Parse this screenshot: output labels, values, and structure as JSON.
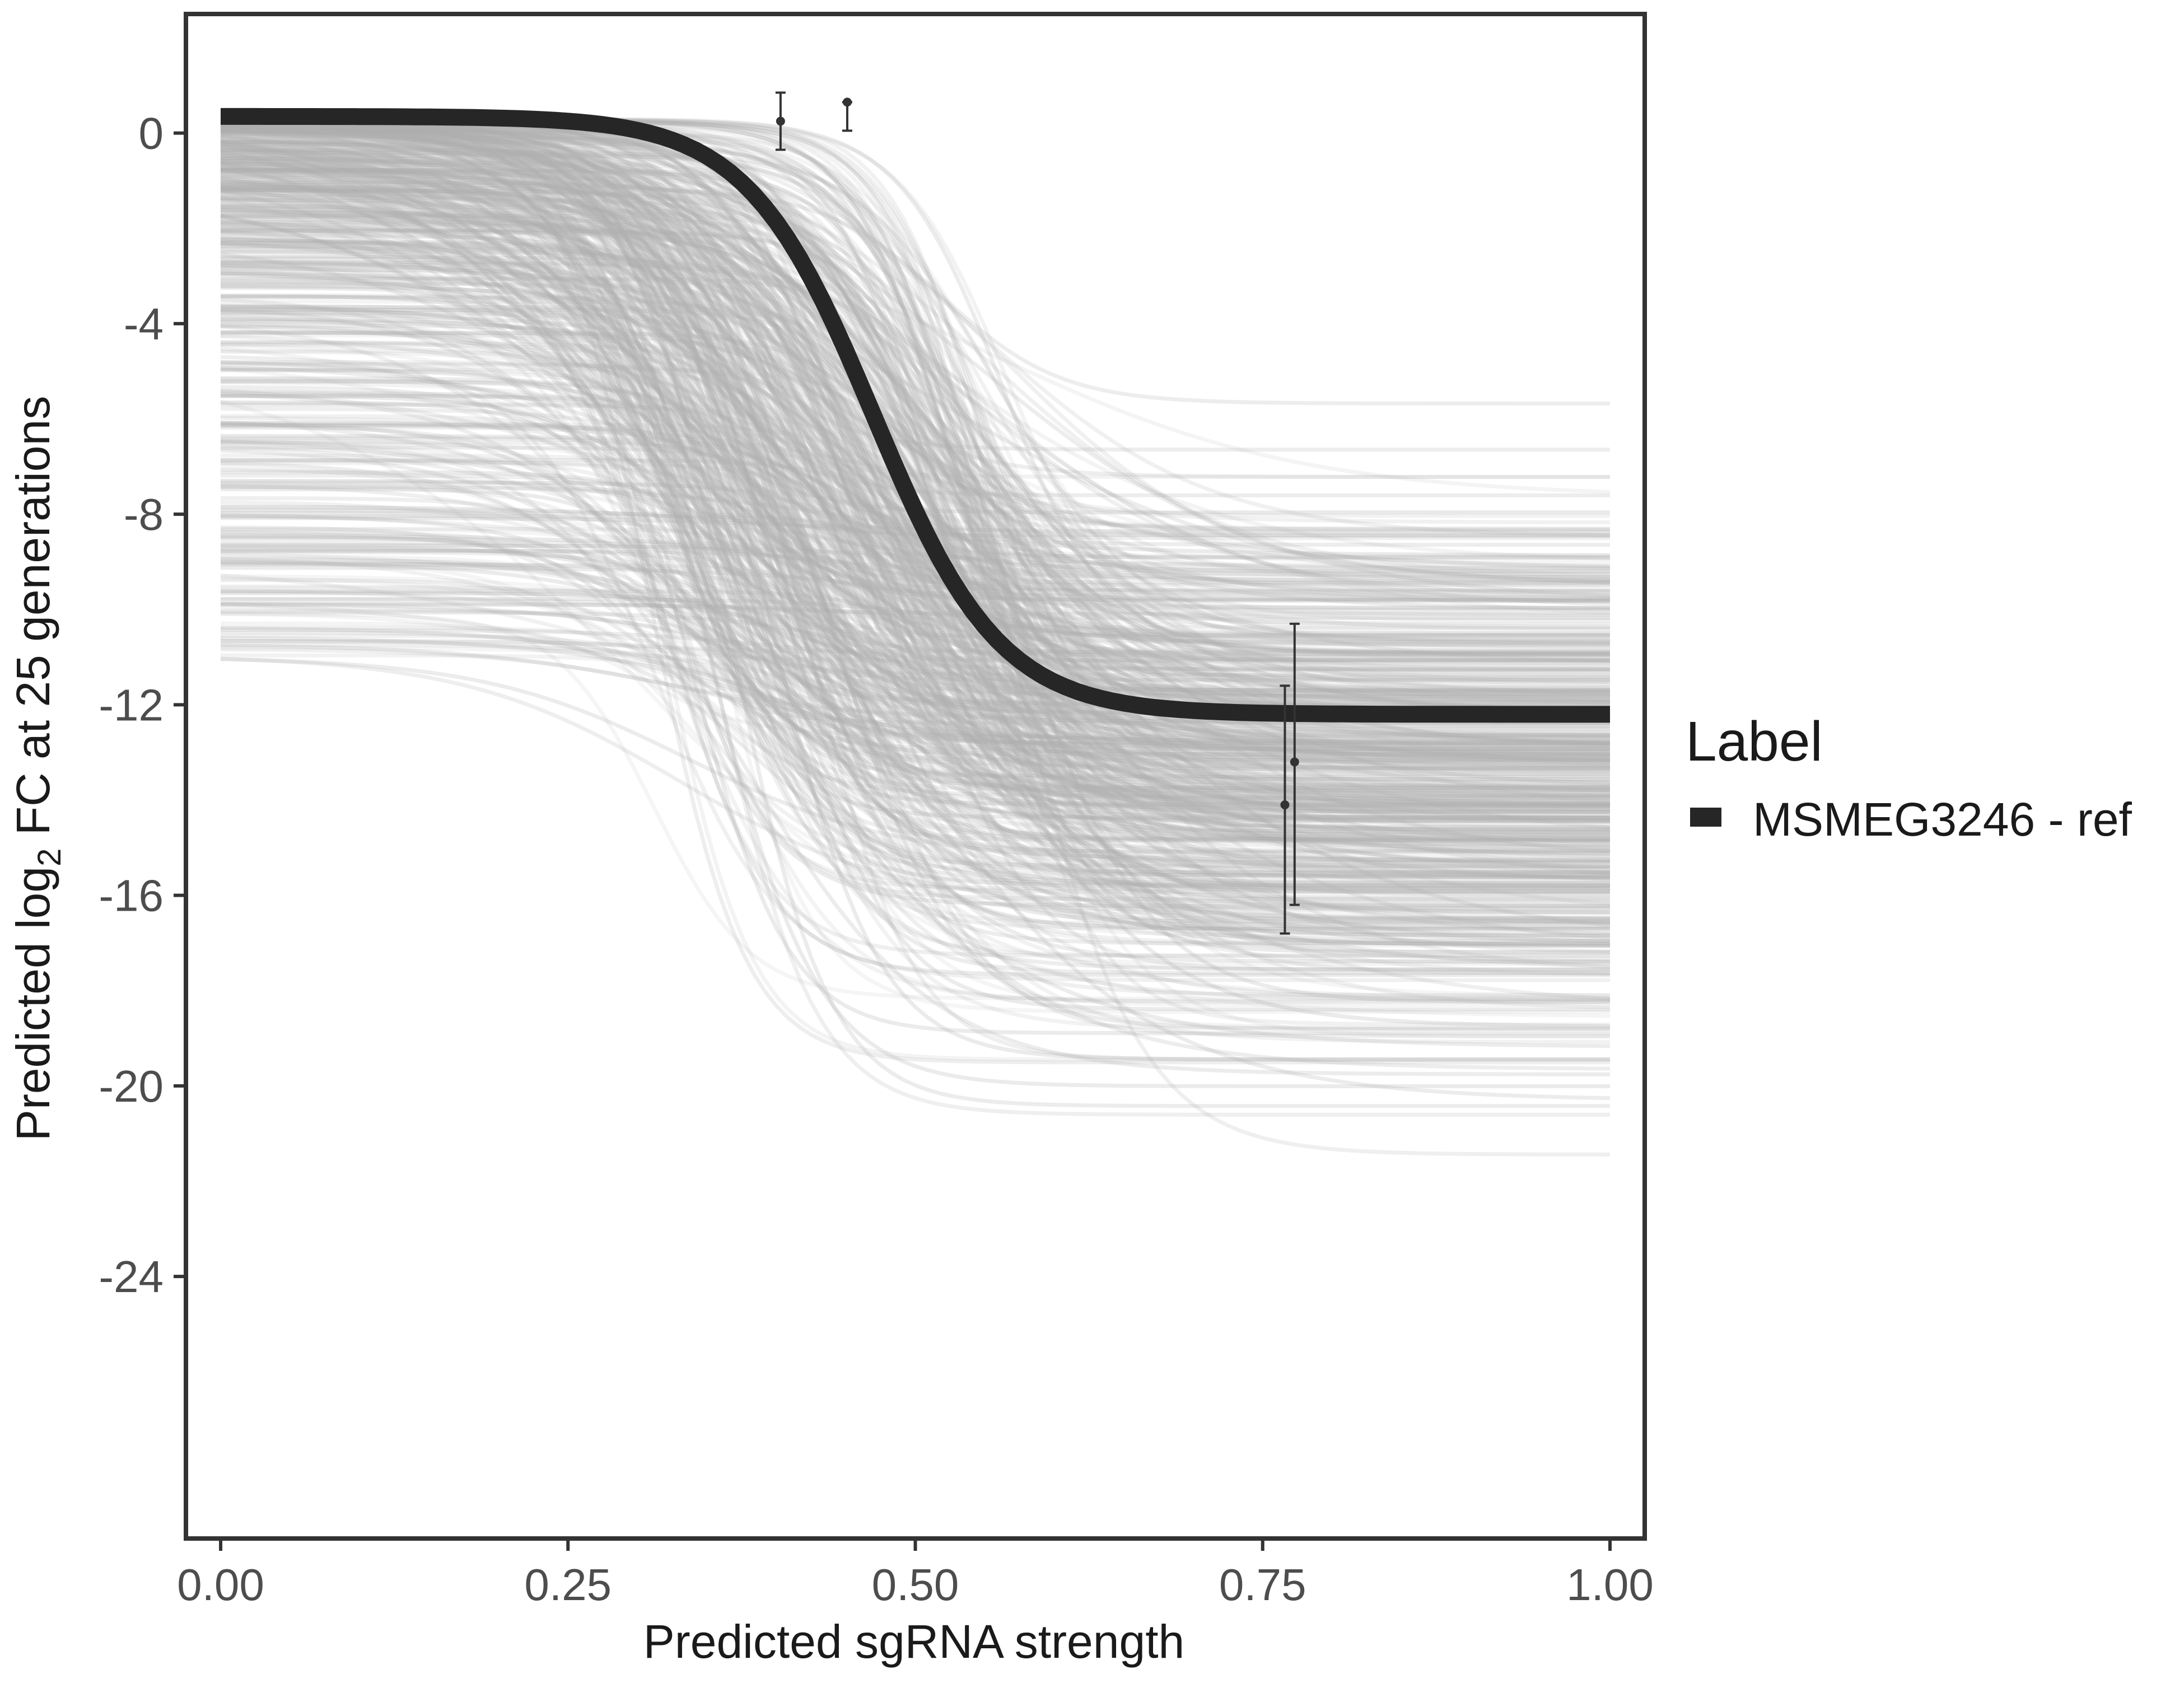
{
  "chart_data": {
    "type": "line",
    "title": "",
    "xlabel": "Predicted sgRNA strength",
    "ylabel_prefix": "Predicted  log",
    "ylabel_subscript": "2",
    "ylabel_suffix": " FC at 25 generations",
    "xlim": [
      -0.025,
      1.025
    ],
    "ylim": [
      -29.5,
      2.5
    ],
    "x_ticks": [
      0.0,
      0.25,
      0.5,
      0.75,
      1.0
    ],
    "x_tick_labels": [
      "0.00",
      "0.25",
      "0.50",
      "0.75",
      "1.00"
    ],
    "y_ticks": [
      0,
      -4,
      -8,
      -12,
      -16,
      -20,
      -24
    ],
    "y_tick_labels": [
      "0",
      "-4",
      "-8",
      "-12",
      "-16",
      "-20",
      "-24"
    ],
    "grid": false,
    "legend": {
      "title": "Label",
      "position": "right",
      "entries": [
        {
          "label": "MSMEG3246 - ref",
          "color": "#262626"
        }
      ]
    },
    "reference_curve": {
      "name": "MSMEG3246 - ref",
      "model": "logistic",
      "upper": 0.35,
      "lower": -12.2,
      "midpoint": 0.47,
      "slope": 22,
      "color": "#262626"
    },
    "posterior_draws": {
      "count": 600,
      "color": "#b0b0b0",
      "upper_range": [
        -11,
        0.3
      ],
      "lower_range": [
        -23.5,
        0.1
      ],
      "midpoint_range": [
        0.3,
        0.6
      ],
      "slope_range": [
        8,
        30
      ]
    },
    "observations": [
      {
        "x": 0.403,
        "y": 0.25,
        "ymin": -0.35,
        "ymax": 0.85
      },
      {
        "x": 0.451,
        "y": 0.65,
        "ymin": 0.05,
        "ymax": 0.65
      },
      {
        "x": 0.766,
        "y": -14.1,
        "ymin": -16.8,
        "ymax": -11.6
      },
      {
        "x": 0.773,
        "y": -13.2,
        "ymin": -16.2,
        "ymax": -10.3
      }
    ]
  }
}
